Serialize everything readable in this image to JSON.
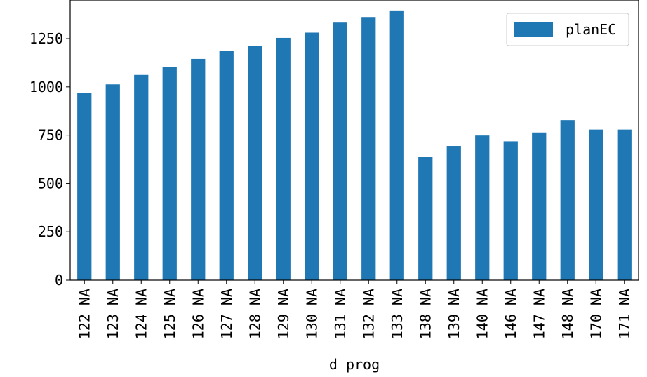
{
  "chart_data": {
    "type": "bar",
    "categories": [
      "122 NA",
      "123 NA",
      "124 NA",
      "125 NA",
      "126 NA",
      "127 NA",
      "128 NA",
      "129 NA",
      "130 NA",
      "131 NA",
      "132 NA",
      "133 NA",
      "138 NA",
      "139 NA",
      "140 NA",
      "146 NA",
      "147 NA",
      "148 NA",
      "170 NA",
      "171 NA"
    ],
    "series": [
      {
        "name": "planEC",
        "color": "#1f77b4",
        "values": [
          968,
          1013,
          1062,
          1103,
          1145,
          1186,
          1211,
          1254,
          1281,
          1333,
          1362,
          1396,
          638,
          694,
          748,
          718,
          764,
          828,
          779,
          779
        ]
      }
    ],
    "xlabel": "d prog",
    "ylabel": "",
    "ylim": [
      0,
      1450
    ],
    "yticks": [
      0,
      250,
      500,
      750,
      1000,
      1250
    ],
    "grid": false,
    "legend_position": "top-right"
  }
}
